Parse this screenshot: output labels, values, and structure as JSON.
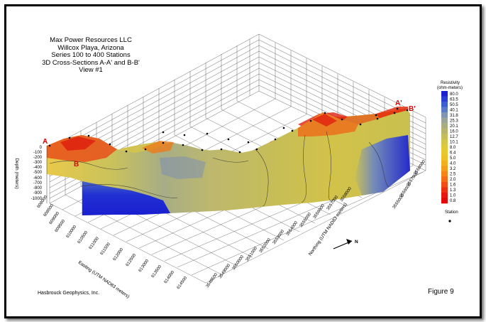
{
  "figure": {
    "title_lines": [
      "Max Power Resources LLC",
      "Willcox Playa, Arizona",
      "Series 100 to 400 Stations",
      "3D Cross-Sections A-A' and B-B'",
      "View #1"
    ],
    "company": "Hasbrouck Geophysics, Inc.",
    "figure_label": "Figure 9"
  },
  "sections": {
    "a": "A",
    "a_prime": "A'",
    "b": "B",
    "b_prime": "B'"
  },
  "depth_axis": {
    "label": "Depth (meters)",
    "ticks": [
      "0",
      "-100",
      "-200",
      "-300",
      "-400",
      "-500",
      "-600",
      "-700",
      "-800",
      "-900",
      "-1000"
    ]
  },
  "easting_axis": {
    "label": "Easting (UTM NAD83 meters)",
    "ticks": [
      "608000",
      "608500",
      "609000",
      "609500",
      "610000",
      "610500",
      "611000",
      "611500",
      "612000",
      "612500",
      "613000",
      "613500",
      "614000",
      "614500"
    ]
  },
  "northing_axis": {
    "label": "Northing (UTM NAD83 meters)",
    "ticks": [
      "3548500",
      "3549000",
      "3550000",
      "3551000",
      "3552000",
      "3553000",
      "3554000",
      "3555000",
      "3556000",
      "3557000",
      "3558000"
    ],
    "ticks_right": [
      "3558000",
      "3557000",
      "3556000",
      "3555000"
    ]
  },
  "north_arrow": {
    "label": "N"
  },
  "legend": {
    "title_line1": "Resistivity",
    "title_line2": "(ohm-meters)",
    "values": [
      "80.0",
      "63.5",
      "50.5",
      "40.1",
      "31.8",
      "25.3",
      "20.1",
      "16.0",
      "12.7",
      "10.1",
      "8.0",
      "6.4",
      "5.0",
      "4.0",
      "3.2",
      "2.5",
      "2.0",
      "1.6",
      "1.3",
      "1.0",
      "0.8"
    ],
    "colors": [
      "#1a1fd0",
      "#2b3fd4",
      "#3b5ed0",
      "#5a7cc8",
      "#7f95b4",
      "#9aa59a",
      "#a9ad82",
      "#b8b46e",
      "#c6bd5c",
      "#d3c44a",
      "#dfc93a",
      "#e8c82e",
      "#eec026",
      "#f2b020",
      "#f49c1c",
      "#f58418",
      "#f46a16",
      "#f24e14",
      "#ee3012",
      "#e81610",
      "#e00808"
    ],
    "station_label": "Station"
  }
}
